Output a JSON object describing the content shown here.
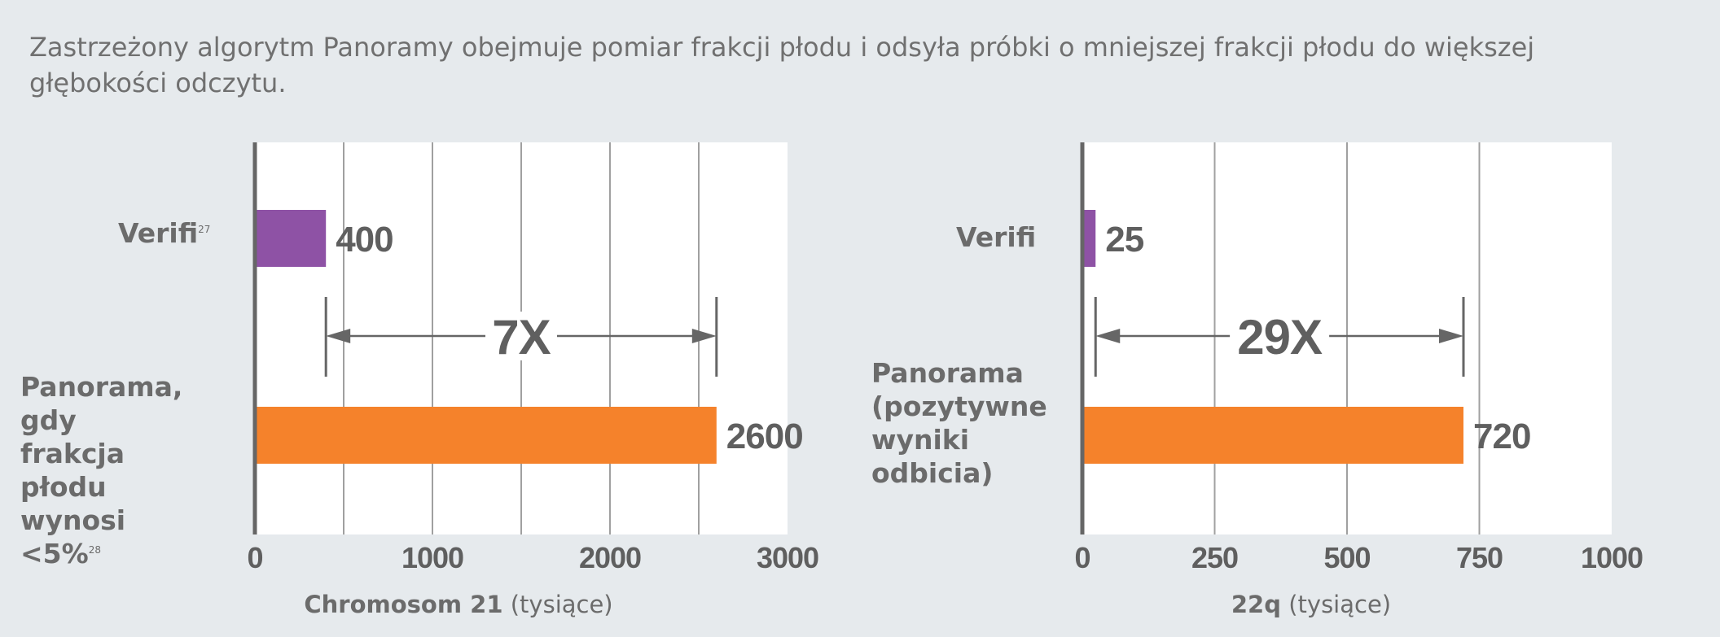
{
  "caption": "Zastrzeżony algorytm Panoramy obejmuje pomiar frakcji płodu i odsyła próbki o mniejszej frakcji płodu do większej głębokości odczytu.",
  "colors": {
    "verifi": "#8e52a5",
    "panorama": "#f5822b",
    "axis": "#666666",
    "grid": "#a0a0a0"
  },
  "chart_data": [
    {
      "type": "bar",
      "orientation": "horizontal",
      "categories": [
        "Verifi",
        "Panorama, gdy frakcja płodu wynosi <5%"
      ],
      "category_lines": [
        [
          "Verifi"
        ],
        [
          "Panorama,",
          "gdy frakcja",
          "płodu wynosi",
          "<5%"
        ]
      ],
      "category_refs": [
        "27",
        "28"
      ],
      "values": [
        400,
        2600
      ],
      "value_labels": [
        "400",
        "2600"
      ],
      "xlim": [
        0,
        3000
      ],
      "xticks": [
        0,
        1000,
        2000,
        3000
      ],
      "gridlines": [
        500,
        1000,
        1500,
        2000,
        2500
      ],
      "xlabel_bold": "Chromosom 21",
      "xlabel_rest": "(tysiące)",
      "annotation": "7X"
    },
    {
      "type": "bar",
      "orientation": "horizontal",
      "categories": [
        "Verifi",
        "Panorama (pozytywne wyniki odbicia)"
      ],
      "category_lines": [
        [
          "Verifi"
        ],
        [
          "Panorama",
          "(pozytywne",
          "wyniki",
          "odbicia)"
        ]
      ],
      "category_refs": [
        "",
        ""
      ],
      "values": [
        25,
        720
      ],
      "value_labels": [
        "25",
        "720"
      ],
      "xlim": [
        0,
        1000
      ],
      "xticks": [
        0,
        250,
        500,
        750,
        1000
      ],
      "gridlines": [
        250,
        500,
        750
      ],
      "xlabel_bold": "22q",
      "xlabel_rest": "(tysiące)",
      "annotation": "29X"
    }
  ]
}
